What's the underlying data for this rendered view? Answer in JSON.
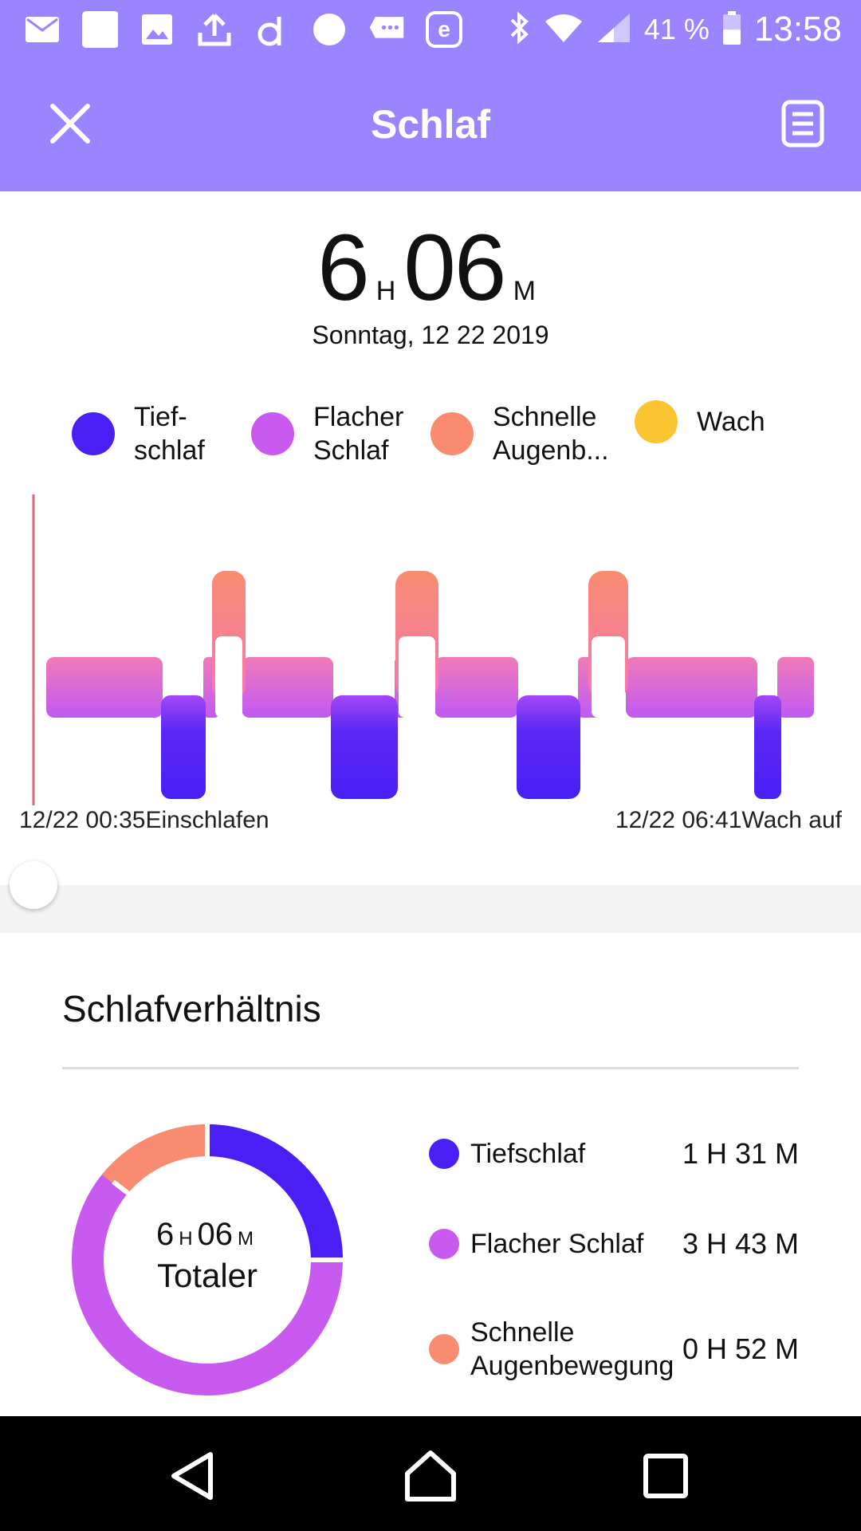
{
  "status_bar": {
    "battery": "41 %",
    "time": "13:58",
    "icons": [
      "mail-icon",
      "square-icon",
      "image-icon",
      "upload-icon",
      "app-icon",
      "circle-icon",
      "message-icon",
      "e-icon",
      "bluetooth-icon",
      "wifi-icon",
      "signal-icon",
      "battery-icon"
    ]
  },
  "app_bar": {
    "title": "Schlaf",
    "close_icon": "close-icon",
    "report_icon": "document-icon"
  },
  "summary": {
    "hours": "6",
    "hours_unit": "H",
    "minutes": "06",
    "minutes_unit": "M",
    "date": "Sonntag, 12 22 2019"
  },
  "legend": [
    {
      "label": "Tief-\nschlaf",
      "color": "#4a1ff5"
    },
    {
      "label": "Flacher\nSchlaf",
      "color": "#c95af0"
    },
    {
      "label": "Schnelle\nAugenb...",
      "color": "#f98b70"
    },
    {
      "label": "Wach",
      "color": "#fbc531"
    }
  ],
  "hypnogram": {
    "start_label": "12/22 00:35Einschlafen",
    "end_label": "12/22 06:41Wach auf",
    "colors": {
      "deep": "#4a1ff5",
      "light": "#c95af0",
      "rem": "#f98b70",
      "awake": "#fbc531"
    }
  },
  "ratio": {
    "title": "Schlafverhältnis",
    "total_hours": "6",
    "total_hours_unit": "H",
    "total_minutes": "06",
    "total_minutes_unit": "M",
    "total_label": "Totaler",
    "rows": [
      {
        "label": "Tiefschlaf",
        "value": "1 H 31 M",
        "color": "#4a1ff5"
      },
      {
        "label": "Flacher Schlaf",
        "value": "3 H 43 M",
        "color": "#c95af0"
      },
      {
        "label": "Schnelle\nAugenbewegung",
        "value": "0 H 52 M",
        "color": "#f98b70"
      }
    ]
  },
  "navigation": {
    "back_icon": "back-icon",
    "home_icon": "home-icon",
    "recents_icon": "recents-icon"
  }
}
